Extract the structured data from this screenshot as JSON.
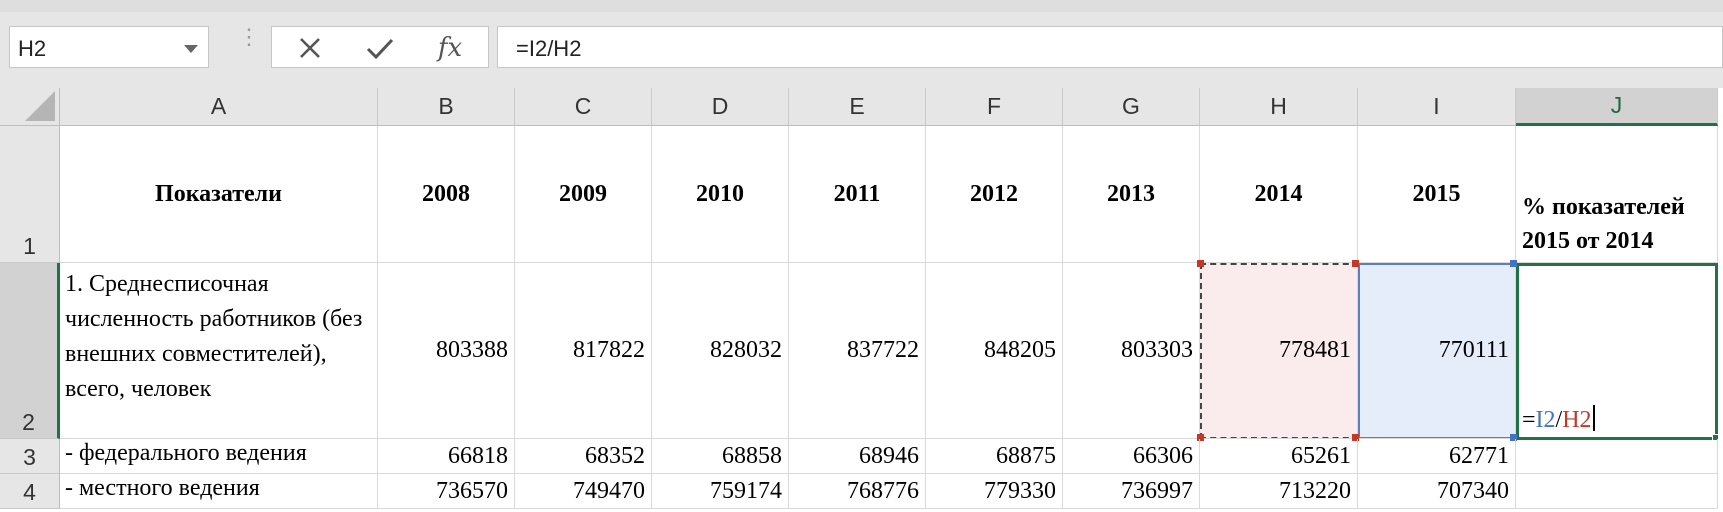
{
  "formula_bar": {
    "name_box": "H2",
    "cancel_icon": "close-icon",
    "enter_icon": "check-icon",
    "fx_label": "fx",
    "formula": "=I2/H2"
  },
  "columns": [
    "A",
    "B",
    "C",
    "D",
    "E",
    "F",
    "G",
    "H",
    "I",
    "J"
  ],
  "rows": [
    "1",
    "2",
    "3",
    "4"
  ],
  "header_row": {
    "A": "Показатели",
    "B": "2008",
    "C": "2009",
    "D": "2010",
    "E": "2011",
    "F": "2012",
    "G": "2013",
    "H": "2014",
    "I": "2015",
    "J": "% показателей 2015 от 2014"
  },
  "data_rows": [
    {
      "label": "1. Среднесписочная численность работников (без внешних совместителей), всего, человек",
      "values": [
        "803388",
        "817822",
        "828032",
        "837722",
        "848205",
        "803303",
        "778481",
        "770111"
      ]
    },
    {
      "label": "- федерального ведения",
      "values": [
        "66818",
        "68352",
        "68858",
        "68946",
        "68875",
        "66306",
        "65261",
        "62771"
      ]
    },
    {
      "label": "- местного ведения",
      "values": [
        "736570",
        "749470",
        "759174",
        "768776",
        "779330",
        "736997",
        "713220",
        "707340"
      ]
    }
  ],
  "editing_cell": {
    "eq": "=",
    "ref1": "I2",
    "slash": "/",
    "ref2": "H2"
  },
  "colors": {
    "selection": "#217346",
    "ref_I": "#4472c4",
    "ref_H": "#c0392b"
  }
}
